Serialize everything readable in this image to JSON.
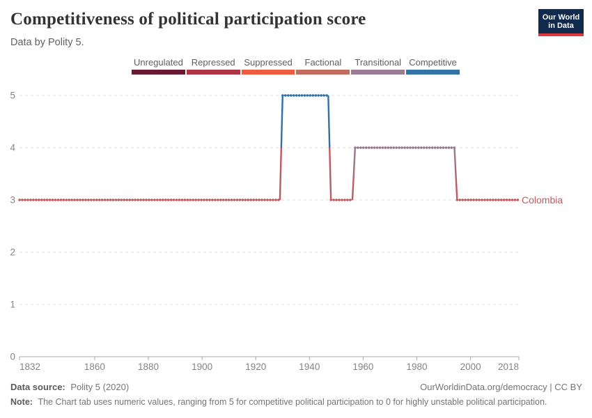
{
  "header": {
    "title": "Competitiveness of political participation score",
    "subtitle": "Data by Polity 5.",
    "logo_line1": "Our World",
    "logo_line2": "in Data",
    "logo_bg_color": "#102A4D",
    "logo_accent_color": "#E0373F"
  },
  "legend": {
    "items": [
      {
        "label": "Unregulated",
        "color": "#6B1A33"
      },
      {
        "label": "Repressed",
        "color": "#B13549"
      },
      {
        "label": "Suppressed",
        "color": "#EE5B3F"
      },
      {
        "label": "Factional",
        "color": "#C26D60"
      },
      {
        "label": "Transitional",
        "color": "#9B7D92"
      },
      {
        "label": "Competitive",
        "color": "#3273A8"
      }
    ]
  },
  "chart_data": {
    "type": "line",
    "title": "Competitiveness of political participation score",
    "subtitle": "Data by Polity 5.",
    "entity": "Colombia",
    "xlim": [
      1832,
      2018
    ],
    "ylim": [
      0,
      5
    ],
    "grid": true,
    "x_ticks": [
      1832,
      1860,
      1880,
      1900,
      1920,
      1940,
      1960,
      1980,
      2000,
      2018
    ],
    "y_ticks": [
      0,
      1,
      2,
      3,
      4,
      5
    ],
    "series": [
      {
        "name": "Colombia",
        "segments": [
          {
            "from": 1832,
            "to": 1929,
            "value": 3
          },
          {
            "from": 1930,
            "to": 1947,
            "value": 5
          },
          {
            "from": 1948,
            "to": 1956,
            "value": 3
          },
          {
            "from": 1957,
            "to": 1994,
            "value": 4
          },
          {
            "from": 1995,
            "to": 2018,
            "value": 3
          }
        ]
      }
    ],
    "value_colors": {
      "3": "#BE5A5F",
      "4": "#97788D",
      "5": "#3070A6"
    },
    "grid_color": "#dcdcdc",
    "axis_color": "#a8a8a8"
  },
  "footer": {
    "source_label": "Data source:",
    "source_value": "Polity 5 (2020)",
    "rights": "OurWorldinData.org/democracy | CC BY",
    "note_label": "Note:",
    "note_text": "The Chart tab uses numeric values, ranging from 5 for competitive political participation to 0 for highly unstable political participation."
  }
}
